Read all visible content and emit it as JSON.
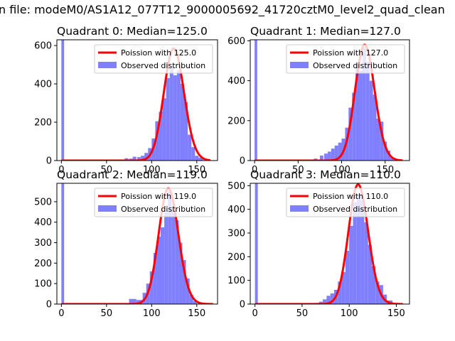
{
  "figure": {
    "suptitle": "n file: modeM0/AS1A12_077T12_9000005692_41720cztM0_level2_quad_clean"
  },
  "colors": {
    "poisson_line": "#ff0000",
    "histogram": "#8080ff",
    "axes": "#000000"
  },
  "chart_data": [
    {
      "type": "bar",
      "title": "Quadrant 0: Median=125.0",
      "xlim": [
        -5,
        173
      ],
      "ylim": [
        0,
        630
      ],
      "xticks": [
        0,
        50,
        100,
        150
      ],
      "yticks": [
        0,
        200,
        400,
        600
      ],
      "legend_position": "upper right",
      "legend": [
        "Poission with 125.0",
        "Observed distribution"
      ],
      "bins": {
        "start": [
          0,
          50,
          60,
          66,
          70,
          75,
          79,
          84,
          88,
          92,
          96,
          100,
          104,
          108,
          112,
          116,
          120,
          124,
          128,
          132,
          136,
          140,
          144,
          148,
          152
        ],
        "end": [
          3,
          54,
          64,
          70,
          74,
          79,
          83,
          88,
          92,
          96,
          100,
          104,
          108,
          112,
          116,
          120,
          124,
          128,
          132,
          136,
          140,
          144,
          148,
          152,
          157
        ],
        "counts": [
          650,
          2,
          3,
          5,
          12,
          10,
          20,
          18,
          25,
          40,
          65,
          115,
          205,
          255,
          325,
          430,
          485,
          445,
          470,
          400,
          305,
          135,
          70,
          25,
          15
        ]
      },
      "poisson": {
        "label": "Poission with 125.0",
        "mean": 125.0,
        "scale": 585,
        "xmax": 165
      }
    },
    {
      "type": "bar",
      "title": "Quadrant 1: Median=127.0",
      "xlim": [
        -5,
        178
      ],
      "ylim": [
        0,
        605
      ],
      "xticks": [
        0,
        50,
        100,
        150
      ],
      "yticks": [
        0,
        200,
        400,
        600
      ],
      "legend_position": "upper right",
      "legend": [
        "Poission with 127.0",
        "Observed distribution"
      ],
      "bins": {
        "start": [
          0,
          60,
          68,
          75,
          80,
          84,
          88,
          92,
          96,
          100,
          104,
          108,
          112,
          116,
          120,
          124,
          128,
          132,
          136,
          140,
          144,
          148,
          152,
          156
        ],
        "end": [
          3,
          64,
          72,
          79,
          84,
          88,
          92,
          96,
          100,
          104,
          108,
          112,
          116,
          120,
          124,
          128,
          132,
          136,
          140,
          144,
          148,
          152,
          156,
          160
        ],
        "counts": [
          650,
          5,
          10,
          25,
          35,
          45,
          60,
          75,
          90,
          110,
          165,
          265,
          340,
          485,
          450,
          565,
          495,
          400,
          330,
          210,
          195,
          95,
          50,
          15
        ]
      },
      "poisson": {
        "label": "Poission with 127.0",
        "mean": 127.0,
        "scale": 580,
        "xmax": 170
      }
    },
    {
      "type": "bar",
      "title": "Quadrant 2: Median=119.0",
      "xlim": [
        -5,
        173
      ],
      "ylim": [
        0,
        590
      ],
      "xticks": [
        0,
        50,
        100,
        150
      ],
      "yticks": [
        0,
        100,
        200,
        300,
        400,
        500
      ],
      "legend_position": "upper right",
      "legend": [
        "Poission with 119.0",
        "Observed distribution"
      ],
      "bins": {
        "start": [
          0,
          75,
          83,
          90,
          94,
          98,
          102,
          106,
          110,
          114,
          118,
          122,
          126,
          130,
          134,
          138,
          142,
          146
        ],
        "end": [
          3,
          83,
          90,
          94,
          98,
          102,
          106,
          110,
          114,
          118,
          122,
          126,
          130,
          134,
          138,
          142,
          146,
          150
        ],
        "counts": [
          650,
          25,
          20,
          55,
          100,
          160,
          250,
          330,
          375,
          450,
          550,
          455,
          410,
          300,
          215,
          125,
          45,
          15
        ]
      },
      "poisson": {
        "label": "Poission with 119.0",
        "mean": 119.0,
        "scale": 565,
        "xmax": 168
      }
    },
    {
      "type": "bar",
      "title": "Quadrant 3: Median=110.0",
      "xlim": [
        -5,
        164
      ],
      "ylim": [
        0,
        510
      ],
      "xticks": [
        0,
        50,
        100,
        150
      ],
      "yticks": [
        0,
        100,
        200,
        300,
        400,
        500
      ],
      "legend_position": "upper right",
      "legend": [
        "Poission with 110.0",
        "Observed distribution"
      ],
      "bins": {
        "start": [
          0,
          64,
          68,
          72,
          76,
          80,
          84,
          88,
          92,
          96,
          100,
          104,
          108,
          112,
          116,
          120,
          124,
          128,
          132,
          136,
          140
        ],
        "end": [
          3,
          68,
          72,
          76,
          80,
          84,
          88,
          92,
          96,
          100,
          104,
          108,
          112,
          116,
          120,
          124,
          128,
          132,
          136,
          140,
          146
        ],
        "counts": [
          650,
          5,
          10,
          20,
          35,
          45,
          60,
          95,
          135,
          225,
          330,
          430,
          465,
          440,
          345,
          250,
          160,
          95,
          80,
          40,
          15
        ]
      },
      "poisson": {
        "label": "Poission with 110.0",
        "mean": 110.0,
        "scale": 505,
        "xmax": 157
      }
    }
  ]
}
